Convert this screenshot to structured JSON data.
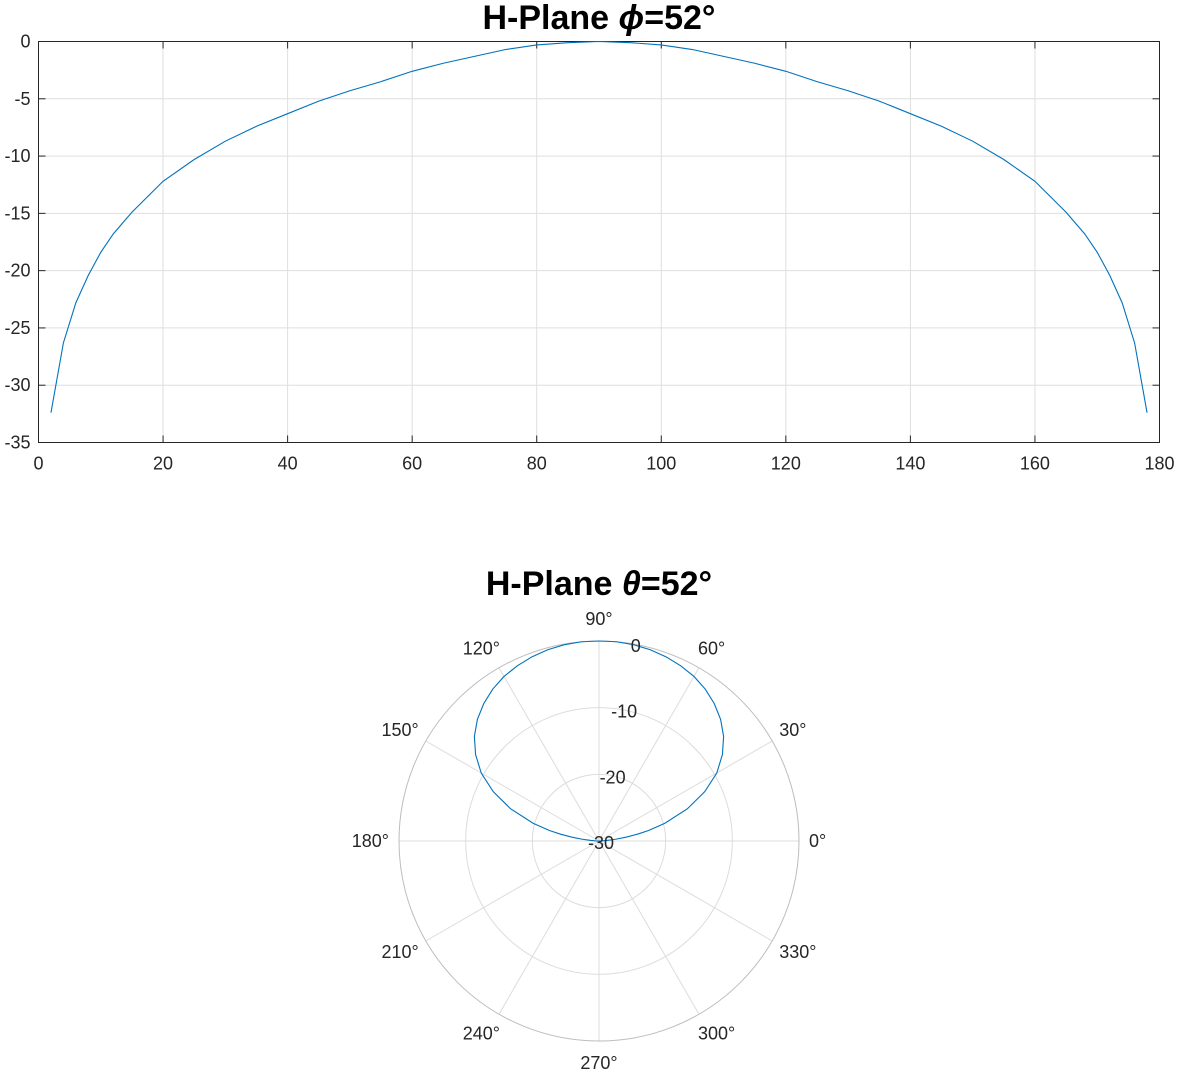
{
  "chart_data": [
    {
      "type": "line",
      "title_text": "H-Plane ",
      "title_symbol": "ϕ",
      "title_suffix": "=52°",
      "xlim": [
        0,
        180
      ],
      "ylim": [
        -35,
        0
      ],
      "x_ticks": [
        0,
        20,
        40,
        60,
        80,
        100,
        120,
        140,
        160,
        180
      ],
      "y_ticks": [
        0,
        -5,
        -10,
        -15,
        -20,
        -25,
        -30,
        -35
      ],
      "grid": true,
      "series": [
        {
          "color": "#0072bd",
          "x": [
            2,
            4,
            6,
            8,
            10,
            12,
            15,
            20,
            25,
            30,
            35,
            40,
            45,
            50,
            55,
            60,
            65,
            70,
            75,
            80,
            85,
            90,
            95,
            100,
            105,
            110,
            115,
            120,
            125,
            130,
            135,
            140,
            145,
            150,
            155,
            160,
            165,
            168,
            170,
            172,
            174,
            176,
            178
          ],
          "y": [
            -32.4,
            -26.3,
            -22.8,
            -20.4,
            -18.4,
            -16.8,
            -14.9,
            -12.2,
            -10.3,
            -8.7,
            -7.4,
            -6.3,
            -5.2,
            -4.3,
            -3.5,
            -2.6,
            -1.9,
            -1.3,
            -0.7,
            -0.3,
            -0.1,
            0,
            -0.1,
            -0.3,
            -0.7,
            -1.3,
            -1.9,
            -2.6,
            -3.5,
            -4.3,
            -5.2,
            -6.3,
            -7.4,
            -8.7,
            -10.3,
            -12.2,
            -14.9,
            -16.8,
            -18.4,
            -20.4,
            -22.8,
            -26.3,
            -32.4
          ]
        }
      ]
    },
    {
      "type": "polar",
      "title_text": "H-Plane ",
      "title_symbol": "θ",
      "title_suffix": "=52°",
      "rlim": [
        -30,
        0
      ],
      "r_ticks": [
        0,
        -10,
        -20,
        -30
      ],
      "theta_ticks": [
        0,
        30,
        60,
        90,
        120,
        150,
        180,
        210,
        240,
        270,
        300,
        330
      ],
      "theta_labels": [
        "0°",
        "30°",
        "60°",
        "90°",
        "120°",
        "150°",
        "180°",
        "210°",
        "240°",
        "270°",
        "300°",
        "330°"
      ],
      "grid": true,
      "series": [
        {
          "color": "#0072bd",
          "theta": [
            0,
            2,
            4,
            6,
            8,
            10,
            12,
            15,
            20,
            25,
            30,
            35,
            40,
            45,
            50,
            55,
            60,
            65,
            70,
            75,
            80,
            85,
            90,
            95,
            100,
            105,
            110,
            115,
            120,
            125,
            130,
            135,
            140,
            145,
            150,
            155,
            160,
            165,
            168,
            170,
            172,
            174,
            176,
            178,
            180
          ],
          "r": [
            -30,
            -29.6,
            -28.8,
            -27.5,
            -26.0,
            -24.2,
            -22.4,
            -19.8,
            -15.9,
            -12.5,
            -9.6,
            -7.4,
            -5.6,
            -4.2,
            -3.1,
            -2.2,
            -1.5,
            -1.0,
            -0.6,
            -0.3,
            -0.1,
            0,
            0,
            0,
            -0.1,
            -0.3,
            -0.6,
            -1.0,
            -1.5,
            -2.2,
            -3.1,
            -4.2,
            -5.6,
            -7.4,
            -9.6,
            -12.5,
            -15.9,
            -19.8,
            -22.4,
            -24.2,
            -26.0,
            -27.5,
            -28.8,
            -29.6,
            -30
          ]
        }
      ]
    }
  ]
}
